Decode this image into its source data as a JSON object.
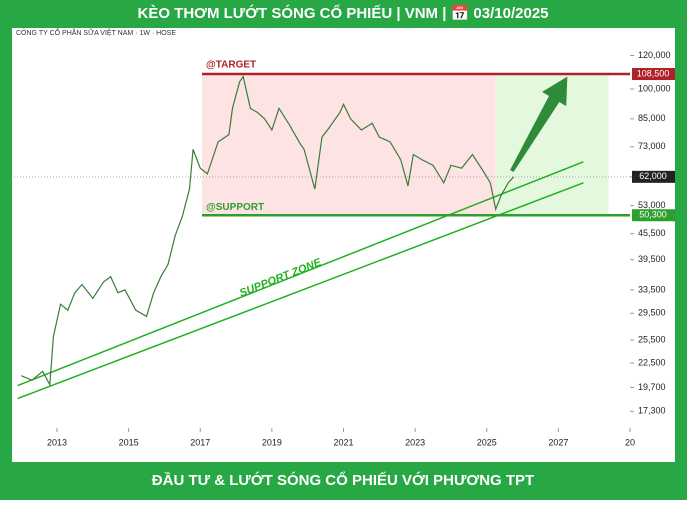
{
  "chart_data": {
    "type": "line",
    "title": "KÈO THƠM LƯỚT SÓNG CỔ PHIẾU | VNM | 📅 03/10/2025",
    "subtitle": "CÔNG TY CỔ PHẦN SỮA VIỆT NAM · 1W · HOSE",
    "footer": "ĐẦU TƯ & LƯỚT SÓNG CỔ PHIẾU VỚI PHƯƠNG TPT",
    "log_scale": true,
    "xlim": [
      2011.8,
      2029
    ],
    "xticks": [
      2013,
      2015,
      2017,
      2019,
      2021,
      2023,
      2025,
      2027,
      {
        "value": 2029,
        "label": "20"
      }
    ],
    "ylim": [
      15800,
      132000
    ],
    "yticks": [
      {
        "value": 17300,
        "label": "17,300"
      },
      {
        "value": 19700,
        "label": "19,700"
      },
      {
        "value": 22500,
        "label": "22,500"
      },
      {
        "value": 25500,
        "label": "25,500"
      },
      {
        "value": 29500,
        "label": "29,500"
      },
      {
        "value": 33500,
        "label": "33,500"
      },
      {
        "value": 39500,
        "label": "39,500"
      },
      {
        "value": 45500,
        "label": "45,500"
      },
      {
        "value": 53000,
        "label": "53,000"
      },
      {
        "value": 62000,
        "label": "62,000"
      },
      {
        "value": 73000,
        "label": "73,000"
      },
      {
        "value": 85000,
        "label": "85,000"
      },
      {
        "value": 100000,
        "label": "100,000"
      },
      {
        "value": 120000,
        "label": "120,000"
      }
    ],
    "series": [
      {
        "name": "VNM",
        "color": "#3a7d3a",
        "x": [
          2012.0,
          2012.3,
          2012.6,
          2012.8,
          2012.9,
          2013.1,
          2013.3,
          2013.5,
          2013.7,
          2014.0,
          2014.3,
          2014.5,
          2014.7,
          2014.9,
          2015.2,
          2015.5,
          2015.7,
          2015.9,
          2016.1,
          2016.3,
          2016.5,
          2016.7,
          2016.8,
          2017.0,
          2017.2,
          2017.5,
          2017.8,
          2017.9,
          2018.1,
          2018.2,
          2018.4,
          2018.6,
          2018.8,
          2019.0,
          2019.2,
          2019.5,
          2019.8,
          2019.9,
          2020.2,
          2020.4,
          2020.6,
          2020.9,
          2021.0,
          2021.2,
          2021.5,
          2021.8,
          2022.0,
          2022.3,
          2022.6,
          2022.8,
          2022.95,
          2023.2,
          2023.5,
          2023.8,
          2024.0,
          2024.3,
          2024.6,
          2024.9,
          2025.1,
          2025.25,
          2025.4,
          2025.6,
          2025.75
        ],
        "values": [
          21000,
          20500,
          21500,
          20000,
          26000,
          31000,
          30000,
          33000,
          34500,
          32000,
          35000,
          36000,
          33000,
          33500,
          30000,
          29000,
          33000,
          36000,
          38500,
          45000,
          50000,
          58000,
          72000,
          65000,
          63000,
          75000,
          78000,
          90000,
          104000,
          107000,
          90000,
          88000,
          85000,
          80000,
          90000,
          82000,
          74000,
          72000,
          58000,
          77000,
          81000,
          88000,
          92000,
          85000,
          80000,
          83000,
          77000,
          75000,
          68000,
          59000,
          70000,
          68000,
          66000,
          60000,
          66000,
          65000,
          70000,
          64000,
          60000,
          52000,
          56000,
          60000,
          62000
        ]
      }
    ],
    "last_price": 62000,
    "last_price_label": "62,000",
    "levels": [
      {
        "name": "@TARGET",
        "value": 108500,
        "value_label": "108,500",
        "color": "#b0202a"
      },
      {
        "name": "@SUPPORT",
        "value": 50300,
        "value_label": "50,300",
        "color": "#2e9e2e"
      }
    ],
    "zones": [
      {
        "x": [
          2017.05,
          2025.25
        ],
        "color": "#fde3e3"
      },
      {
        "x": [
          2025.25,
          2028.4
        ],
        "color": "#e3f8dc"
      }
    ],
    "trendlines": [
      {
        "x": [
          2011.9,
          2027.7
        ],
        "values": [
          19900,
          67300
        ]
      },
      {
        "x": [
          2011.9,
          2027.7
        ],
        "values": [
          18550,
          60000
        ]
      }
    ],
    "trendline_label": "SUPPORT ZONE",
    "arrow": {
      "x": [
        2025.7,
        2027.25
      ],
      "values": [
        64000,
        107000
      ]
    }
  }
}
